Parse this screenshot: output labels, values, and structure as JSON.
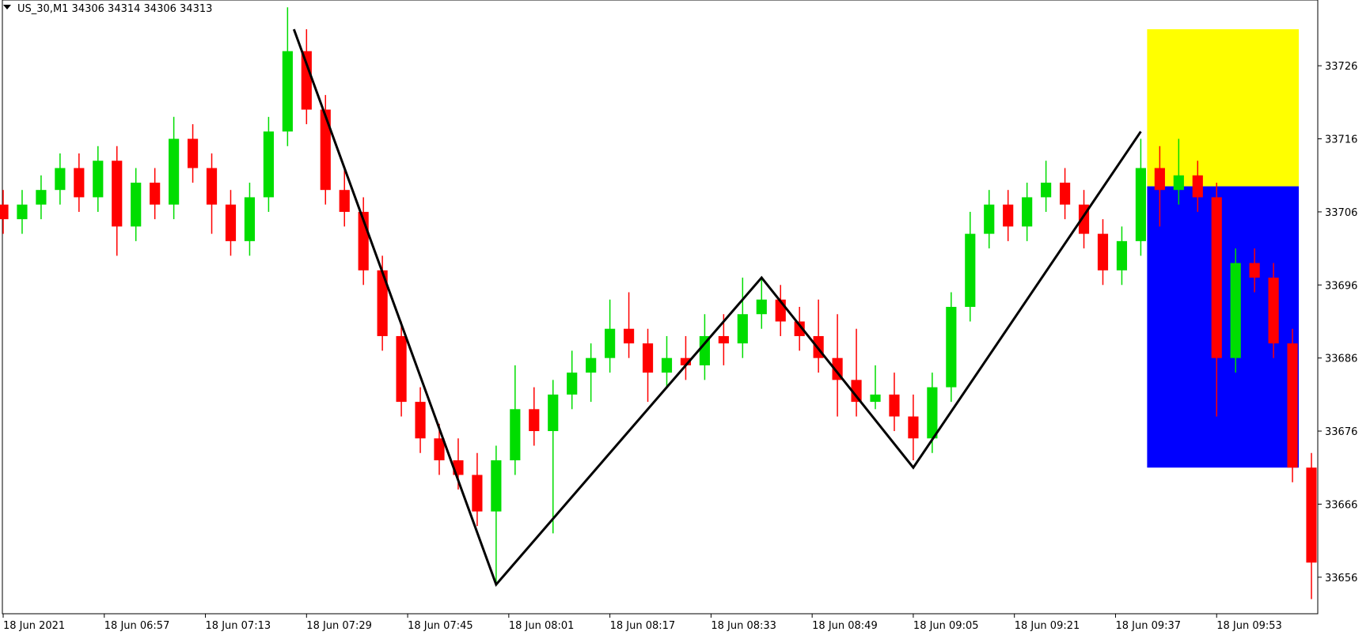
{
  "chart_data": {
    "type": "candlestick",
    "title": "US_30,M1  34306 34314 34306 34313",
    "up_color": "#00dd00",
    "down_color": "#ff0000",
    "xlim": [
      0,
      208
    ],
    "ylim": [
      33651,
      33735
    ],
    "xticks": [
      {
        "value": 0,
        "label": "18 Jun 2021"
      },
      {
        "value": 16,
        "label": "18 Jun 06:57"
      },
      {
        "value": 32,
        "label": "18 Jun 07:13"
      },
      {
        "value": 48,
        "label": "18 Jun 07:29"
      },
      {
        "value": 64,
        "label": "18 Jun 07:45"
      },
      {
        "value": 80,
        "label": "18 Jun 08:01"
      },
      {
        "value": 96,
        "label": "18 Jun 08:17"
      },
      {
        "value": 112,
        "label": "18 Jun 08:33"
      },
      {
        "value": 128,
        "label": "18 Jun 08:49"
      },
      {
        "value": 144,
        "label": "18 Jun 09:05"
      },
      {
        "value": 160,
        "label": "18 Jun 09:21"
      },
      {
        "value": 176,
        "label": "18 Jun 09:37"
      },
      {
        "value": 192,
        "label": "18 Jun 09:53"
      }
    ],
    "yticks": [
      33656,
      33666,
      33676,
      33686,
      33696,
      33706,
      33716,
      33726
    ],
    "x": [
      0,
      3,
      6,
      9,
      12,
      15,
      18,
      21,
      24,
      27,
      30,
      33,
      36,
      39,
      42,
      45,
      48,
      51,
      54,
      57,
      60,
      63,
      66,
      69,
      72,
      75,
      78,
      81,
      84,
      87,
      90,
      93,
      96,
      99,
      102,
      105,
      108,
      111,
      114,
      117,
      120,
      123,
      126,
      129,
      132,
      135,
      138,
      141,
      144,
      147,
      150,
      153,
      156,
      159,
      162,
      165,
      168,
      171,
      174,
      177,
      180,
      183,
      186,
      189,
      192,
      195,
      198,
      201,
      204,
      207
    ],
    "ohlc": [
      [
        33707,
        33709,
        33703,
        33705
      ],
      [
        33705,
        33709,
        33703,
        33707
      ],
      [
        33707,
        33711,
        33705,
        33709
      ],
      [
        33709,
        33714,
        33707,
        33712
      ],
      [
        33712,
        33714,
        33706,
        33708
      ],
      [
        33708,
        33715,
        33706,
        33713
      ],
      [
        33713,
        33715,
        33700,
        33704
      ],
      [
        33704,
        33712,
        33702,
        33710
      ],
      [
        33710,
        33712,
        33705,
        33707
      ],
      [
        33707,
        33719,
        33705,
        33716
      ],
      [
        33716,
        33718,
        33710,
        33712
      ],
      [
        33712,
        33714,
        33703,
        33707
      ],
      [
        33707,
        33709,
        33700,
        33702
      ],
      [
        33702,
        33710,
        33700,
        33708
      ],
      [
        33708,
        33719,
        33706,
        33717
      ],
      [
        33717,
        33734,
        33715,
        33728
      ],
      [
        33728,
        33731,
        33718,
        33720
      ],
      [
        33720,
        33722,
        33707,
        33709
      ],
      [
        33709,
        33712,
        33704,
        33706
      ],
      [
        33706,
        33708,
        33696,
        33698
      ],
      [
        33698,
        33700,
        33687,
        33689
      ],
      [
        33689,
        33691,
        33678,
        33680
      ],
      [
        33680,
        33682,
        33673,
        33675
      ],
      [
        33675,
        33677,
        33670,
        33672
      ],
      [
        33672,
        33675,
        33668,
        33670
      ],
      [
        33670,
        33673,
        33663,
        33665
      ],
      [
        33665,
        33674,
        33655,
        33672
      ],
      [
        33672,
        33685,
        33670,
        33679
      ],
      [
        33679,
        33682,
        33674,
        33676
      ],
      [
        33676,
        33683,
        33662,
        33681
      ],
      [
        33681,
        33687,
        33679,
        33684
      ],
      [
        33684,
        33688,
        33680,
        33686
      ],
      [
        33686,
        33694,
        33684,
        33690
      ],
      [
        33690,
        33695,
        33686,
        33688
      ],
      [
        33688,
        33690,
        33680,
        33684
      ],
      [
        33684,
        33689,
        33682,
        33686
      ],
      [
        33686,
        33689,
        33683,
        33685
      ],
      [
        33685,
        33692,
        33683,
        33689
      ],
      [
        33689,
        33692,
        33685,
        33688
      ],
      [
        33688,
        33697,
        33686,
        33692
      ],
      [
        33692,
        33697,
        33690,
        33694
      ],
      [
        33694,
        33696,
        33689,
        33691
      ],
      [
        33691,
        33693,
        33687,
        33689
      ],
      [
        33689,
        33694,
        33684,
        33686
      ],
      [
        33686,
        33692,
        33678,
        33683
      ],
      [
        33683,
        33690,
        33678,
        33680
      ],
      [
        33680,
        33685,
        33679,
        33681
      ],
      [
        33681,
        33684,
        33676,
        33678
      ],
      [
        33678,
        33681,
        33672,
        33675
      ],
      [
        33675,
        33684,
        33673,
        33682
      ],
      [
        33682,
        33695,
        33680,
        33693
      ],
      [
        33693,
        33706,
        33691,
        33703
      ],
      [
        33703,
        33709,
        33701,
        33707
      ],
      [
        33707,
        33709,
        33702,
        33704
      ],
      [
        33704,
        33710,
        33702,
        33708
      ],
      [
        33708,
        33713,
        33706,
        33710
      ],
      [
        33710,
        33712,
        33705,
        33707
      ],
      [
        33707,
        33709,
        33701,
        33703
      ],
      [
        33703,
        33705,
        33696,
        33698
      ],
      [
        33698,
        33704,
        33696,
        33702
      ],
      [
        33702,
        33716,
        33700,
        33712
      ],
      [
        33712,
        33715,
        33704,
        33709
      ],
      [
        33709,
        33716,
        33707,
        33711
      ],
      [
        33711,
        33713,
        33706,
        33708
      ],
      [
        33708,
        33710,
        33678,
        33686
      ],
      [
        33686,
        33701,
        33684,
        33699
      ],
      [
        33699,
        33701,
        33695,
        33697
      ],
      [
        33697,
        33699,
        33686,
        33688
      ],
      [
        33688,
        33690,
        33669,
        33671
      ],
      [
        33671,
        33673,
        33653,
        33658
      ]
    ],
    "zigzag": {
      "color": "#000000",
      "x": [
        46,
        78,
        120,
        144,
        180
      ],
      "values": [
        33731,
        33655,
        33697,
        33671,
        33717
      ]
    },
    "zones": [
      {
        "color": "#ffff00",
        "x": [
          181,
          205
        ],
        "values": [
          33709.5,
          33731
        ]
      },
      {
        "color": "#0000ff",
        "x": [
          181,
          205
        ],
        "values": [
          33671,
          33709.5
        ]
      }
    ]
  }
}
